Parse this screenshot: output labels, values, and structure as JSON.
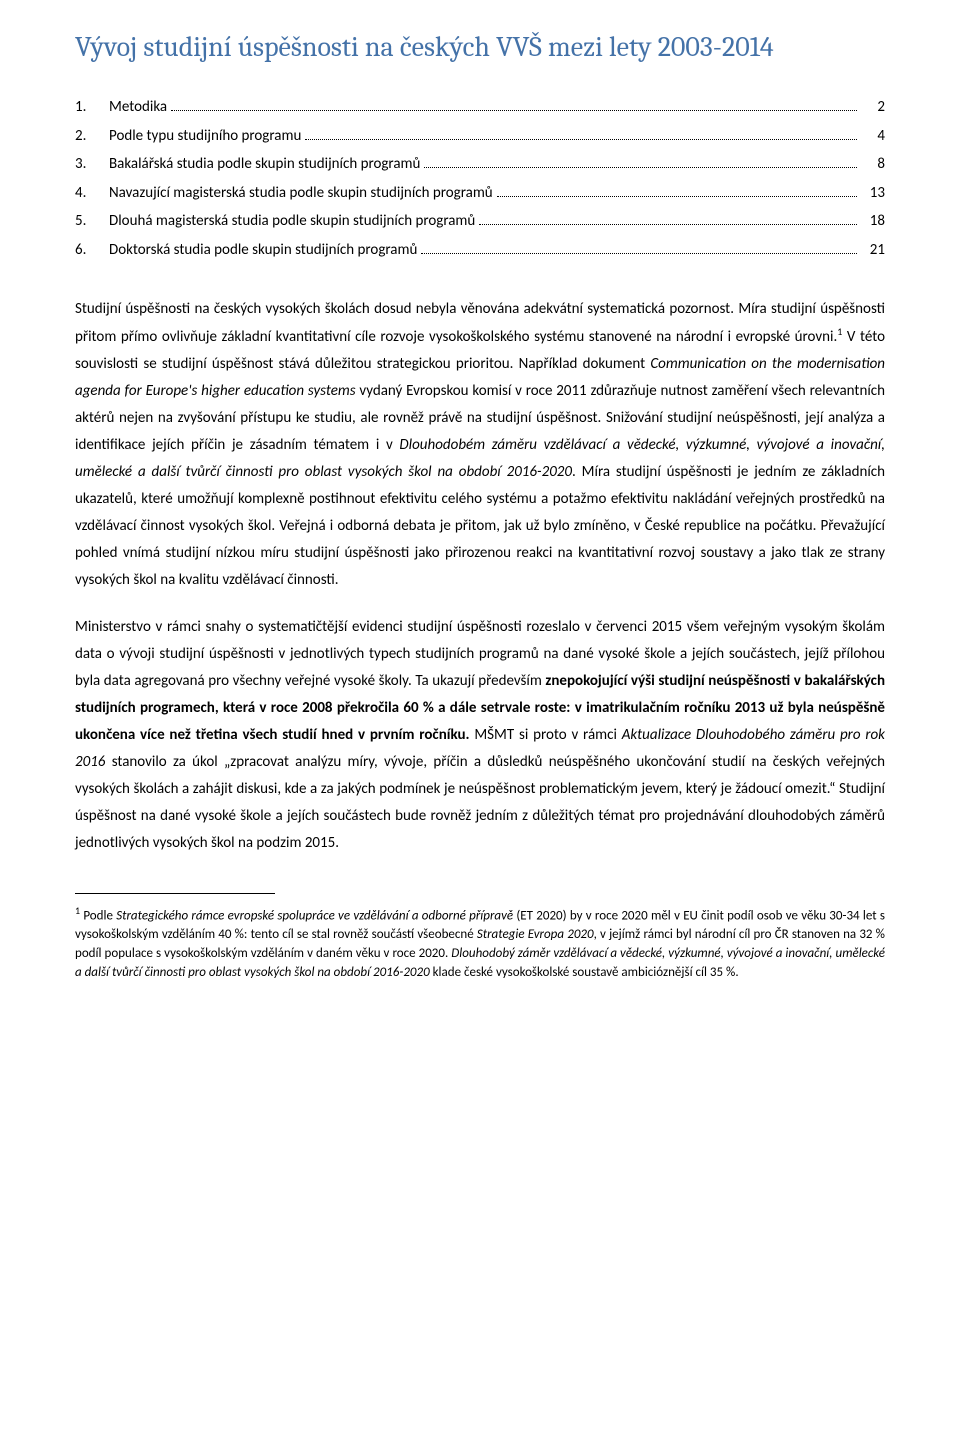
{
  "title": "Vývoj studijní úspěšnosti na českých VVŠ mezi lety 2003-2014",
  "toc": [
    {
      "num": "1.",
      "label": "Metodika",
      "page": "2"
    },
    {
      "num": "2.",
      "label": "Podle typu studijního programu",
      "page": "4"
    },
    {
      "num": "3.",
      "label": "Bakalářská studia podle skupin studijních programů",
      "page": "8"
    },
    {
      "num": "4.",
      "label": "Navazující magisterská studia podle skupin studijních programů",
      "page": "13"
    },
    {
      "num": "5.",
      "label": "Dlouhá magisterská studia podle skupin studijních programů",
      "page": "18"
    },
    {
      "num": "6.",
      "label": "Doktorská studia podle skupin studijních programů",
      "page": "21"
    }
  ],
  "para1": {
    "t1": "Studijní úspěšnosti na českých vysokých školách dosud nebyla věnována adekvátní systematická pozornost. Míra studijní úspěšnosti přitom přímo ovlivňuje základní kvantitativní cíle rozvoje vysokoškolského systému stanovené na národní i evropské úrovni.",
    "sup1": "1",
    "t2": " V této souvislosti se studijní úspěšnost stává důležitou strategickou prioritou. Například dokument ",
    "it1": "Communication on the modernisation agenda for Europe's higher education systems",
    "t3": " vydaný Evropskou komisí v roce 2011 zdůrazňuje nutnost zaměření všech relevantních aktérů nejen na zvyšování přístupu ke studiu, ale rovněž právě na studijní úspěšnost. Snižování studijní neúspěšnosti, její analýza a identifikace jejích příčin je zásadním tématem i v ",
    "it2": "Dlouhodobém záměru vzdělávací a vědecké, výzkumné, vývojové a inovační, umělecké a další tvůrčí činnosti pro oblast vysokých škol na období 2016-2020",
    "t4": ". Míra studijní úspěšnosti je jedním ze základních ukazatelů, které umožňují komplexně postihnout efektivitu celého systému a potažmo efektivitu nakládání veřejných prostředků na vzdělávací činnost vysokých škol. Veřejná i odborná debata je přitom, jak už bylo zmíněno, v České republice na počátku. Převažující pohled vnímá studijní nízkou míru studijní úspěšnosti jako přirozenou reakci na kvantitativní rozvoj soustavy a jako tlak ze strany vysokých škol na kvalitu vzdělávací činnosti."
  },
  "para2": {
    "t1": "Ministerstvo v rámci snahy o systematičtější evidenci studijní úspěšnosti rozeslalo v červenci 2015 všem veřejným vysokým školám data o vývoji studijní úspěšnosti v jednotlivých typech studijních programů na dané vysoké škole a jejích součástech, jejíž přílohou byla data agregovaná pro všechny veřejné vysoké školy. Ta ukazují především ",
    "b1": "znepokojující výši studijní neúspěšnosti v bakalářských studijních programech, která v roce 2008 překročila 60 % a dále setrvale roste: v imatrikulačním ročníku 2013 už byla neúspěšně ukončena více než třetina všech studií hned v prvním ročníku.",
    "t2": " MŠMT si proto v rámci ",
    "it1": "Aktualizace Dlouhodobého záměru pro rok 2016",
    "t3": " stanovilo za úkol „zpracovat analýzu míry, vývoje, příčin a důsledků neúspěšného ukončování studií na českých veřejných vysokých školách a zahájit diskusi, kde a za jakých podmínek je neúspěšnost problematickým jevem, který je žádoucí omezit.“ Studijní úspěšnost na dané vysoké škole a jejích součástech bude rovněž jedním z důležitých témat pro projednávání dlouhodobých záměrů jednotlivých vysokých škol na podzim 2015."
  },
  "footnote": {
    "num": "1",
    "t1": " Podle ",
    "it1": "Strategického rámce evropské spolupráce ve vzdělávání a odborné přípravě",
    "t2": " (ET 2020) by v roce 2020 měl v EU činit podíl osob ve věku 30-34 let s vysokoškolským vzděláním 40 %: tento cíl se stal rovněž součástí všeobecné ",
    "it2": "Strategie Evropa 2020",
    "t3": ", v jejímž rámci byl národní cíl pro ČR stanoven na 32 % podíl populace s vysokoškolským vzděláním v daném věku v roce 2020. ",
    "it3": "Dlouhodobý záměr vzdělávací a vědecké, výzkumné, vývojové a inovační, umělecké a další tvůrčí činnosti pro oblast vysokých škol na období 2016-2020",
    "t4": " klade české vysokoškolské soustavě ambicióznější cíl 35 %."
  },
  "colors": {
    "title": "#4472a8",
    "text": "#000000",
    "background": "#ffffff"
  },
  "typography": {
    "title_family": "Cambria",
    "title_size_pt": 20,
    "body_family": "Calibri",
    "body_size_pt": 11,
    "footnote_size_pt": 9,
    "line_height": 1.8
  }
}
